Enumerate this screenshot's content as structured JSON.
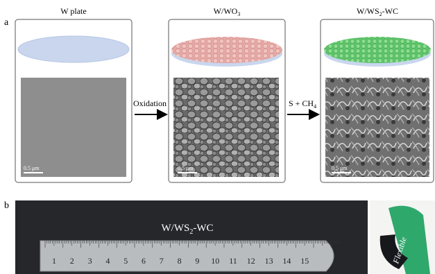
{
  "panel_a": {
    "label": "a",
    "steps": [
      {
        "title": {
          "main": "W plate"
        },
        "scale_bar": "0.5 μm"
      },
      {
        "title": {
          "main": "W/WO",
          "sub": "3"
        },
        "scale_bar": "0.5 μm"
      },
      {
        "title": {
          "main": "W/WS",
          "sub": "2",
          "tail": "-WC"
        },
        "scale_bar": "0.5 μm"
      }
    ],
    "arrows": [
      {
        "main": "Oxidation"
      },
      {
        "main": "S + CH",
        "sub": "4"
      }
    ]
  },
  "panel_b": {
    "label": "b",
    "sample_label": {
      "main": "W/WS",
      "sub": "2",
      "tail": "-WC"
    },
    "ruler_numbers": [
      "1",
      "2",
      "3",
      "4",
      "5",
      "6",
      "7",
      "8",
      "9",
      "10",
      "11",
      "12",
      "13",
      "14",
      "15"
    ],
    "flexible_label": "Flexible"
  }
}
